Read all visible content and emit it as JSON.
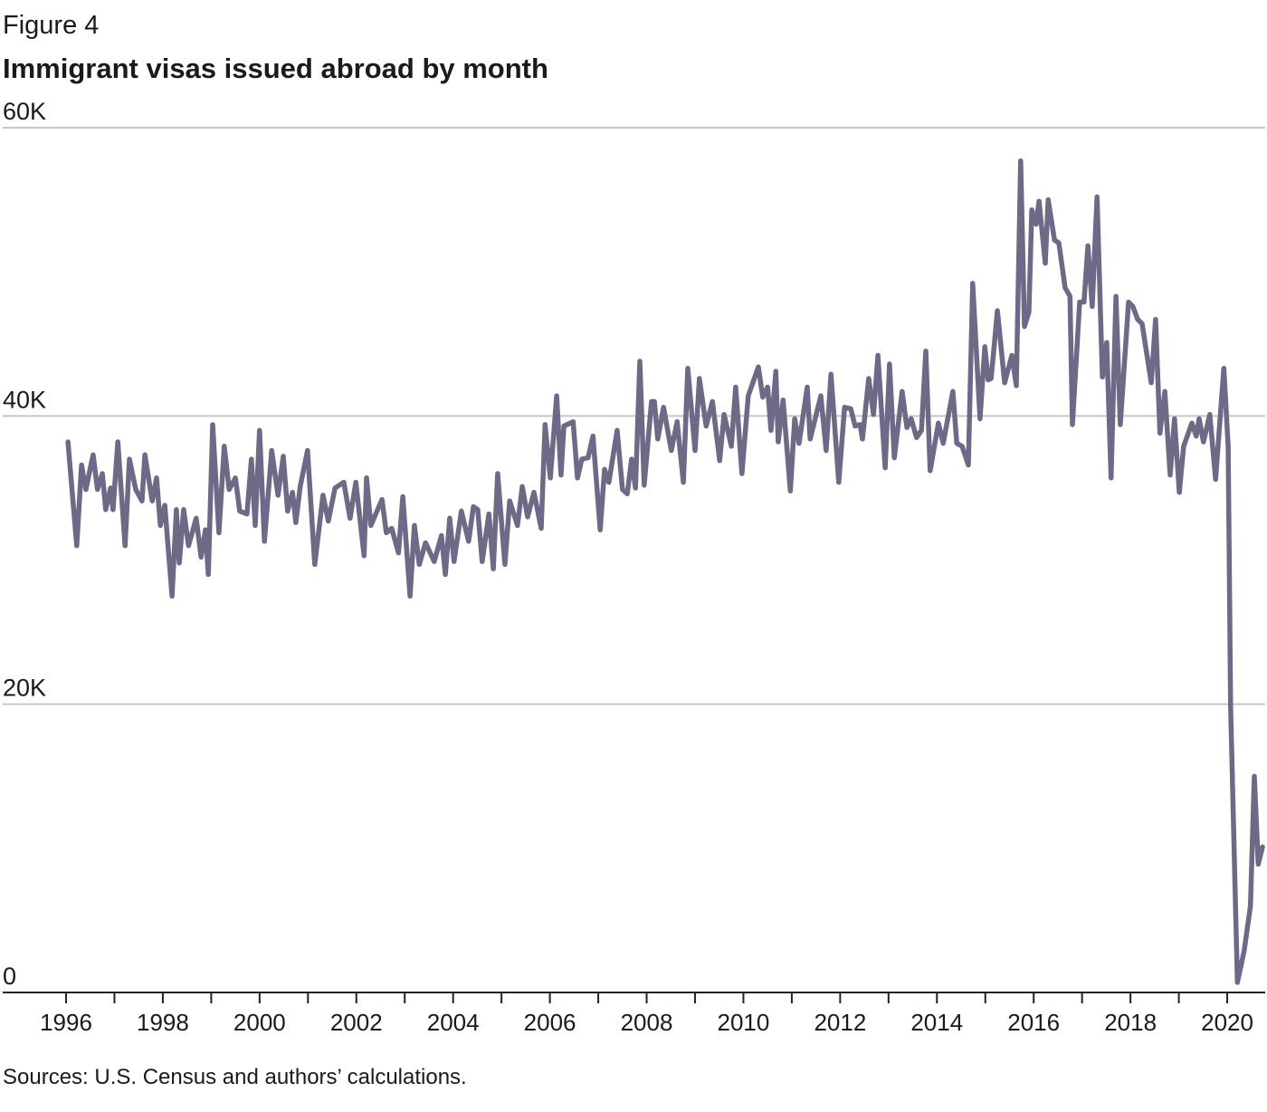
{
  "figure_label": "Figure 4",
  "chart_data": {
    "type": "line",
    "title": "Immigrant visas issued abroad by month",
    "xlabel": "",
    "ylabel": "",
    "xlim": [
      1996,
      2020.75
    ],
    "ylim": [
      0,
      60
    ],
    "y_unit": "thousands",
    "y_ticks": [
      {
        "value": 0,
        "label": "0"
      },
      {
        "value": 20,
        "label": "20K"
      },
      {
        "value": 40,
        "label": "40K"
      },
      {
        "value": 60,
        "label": "60K"
      }
    ],
    "x_ticks": [
      {
        "value": 1996,
        "label": "1996"
      },
      {
        "value": 1998,
        "label": "1998"
      },
      {
        "value": 2000,
        "label": "2000"
      },
      {
        "value": 2002,
        "label": "2002"
      },
      {
        "value": 2004,
        "label": "2004"
      },
      {
        "value": 2006,
        "label": "2006"
      },
      {
        "value": 2008,
        "label": "2008"
      },
      {
        "value": 2010,
        "label": "2010"
      },
      {
        "value": 2012,
        "label": "2012"
      },
      {
        "value": 2014,
        "label": "2014"
      },
      {
        "value": 2016,
        "label": "2016"
      },
      {
        "value": 2018,
        "label": "2018"
      },
      {
        "value": 2020,
        "label": "2020"
      }
    ],
    "grid": true,
    "line_color": "#6d6987",
    "series": [
      {
        "x": [
          1996.04,
          1996.22,
          1996.32,
          1996.41,
          1996.56,
          1996.65,
          1996.75,
          1996.82,
          1996.92,
          1996.97,
          1997.07,
          1997.22,
          1997.31,
          1997.44,
          1997.57,
          1997.63,
          1997.78,
          1997.87,
          1997.95,
          1998.04,
          1998.19,
          1998.28,
          1998.34,
          1998.43,
          1998.53,
          1998.69,
          1998.79,
          1998.88,
          1998.94,
          1999.03,
          1999.16,
          1999.27,
          1999.37,
          1999.5,
          1999.59,
          1999.74,
          1999.83,
          1999.91,
          2000.0,
          2000.1,
          2000.25,
          2000.38,
          2000.49,
          2000.58,
          2000.68,
          2000.75,
          2000.84,
          2000.99,
          2001.14,
          2001.31,
          2001.42,
          2001.56,
          2001.74,
          2001.87,
          2001.99,
          2002.16,
          2002.21,
          2002.3,
          2002.53,
          2002.62,
          2002.73,
          2002.87,
          2002.96,
          2003.11,
          2003.2,
          2003.3,
          2003.43,
          2003.61,
          2003.76,
          2003.84,
          2003.93,
          2004.02,
          2004.17,
          2004.32,
          2004.42,
          2004.51,
          2004.6,
          2004.74,
          2004.83,
          2004.92,
          2005.07,
          2005.17,
          2005.33,
          2005.43,
          2005.54,
          2005.67,
          2005.82,
          2005.9,
          2006.01,
          2006.14,
          2006.23,
          2006.29,
          2006.48,
          2006.57,
          2006.66,
          2006.79,
          2006.89,
          2007.04,
          2007.13,
          2007.22,
          2007.39,
          2007.5,
          2007.6,
          2007.69,
          2007.77,
          2007.86,
          2007.95,
          2008.1,
          2008.16,
          2008.23,
          2008.35,
          2008.51,
          2008.63,
          2008.76,
          2008.85,
          2009.0,
          2009.09,
          2009.23,
          2009.36,
          2009.51,
          2009.6,
          2009.75,
          2009.84,
          2009.97,
          2010.1,
          2010.31,
          2010.4,
          2010.5,
          2010.57,
          2010.67,
          2010.72,
          2010.82,
          2010.97,
          2011.06,
          2011.15,
          2011.32,
          2011.38,
          2011.6,
          2011.71,
          2011.81,
          2011.97,
          2012.09,
          2012.22,
          2012.31,
          2012.41,
          2012.46,
          2012.59,
          2012.69,
          2012.78,
          2012.93,
          2013.02,
          2013.12,
          2013.28,
          2013.38,
          2013.47,
          2013.58,
          2013.68,
          2013.77,
          2013.86,
          2014.03,
          2014.13,
          2014.33,
          2014.41,
          2014.52,
          2014.65,
          2014.74,
          2014.89,
          2014.99,
          2015.06,
          2015.12,
          2015.25,
          2015.4,
          2015.55,
          2015.64,
          2015.73,
          2015.81,
          2015.9,
          2015.96,
          2016.05,
          2016.11,
          2016.24,
          2016.3,
          2016.43,
          2016.52,
          2016.65,
          2016.75,
          2016.8,
          2016.95,
          2017.04,
          2017.12,
          2017.21,
          2017.31,
          2017.42,
          2017.51,
          2017.6,
          2017.7,
          2017.79,
          2017.96,
          2018.05,
          2018.15,
          2018.24,
          2018.43,
          2018.52,
          2018.61,
          2018.71,
          2018.82,
          2018.91,
          2019.01,
          2019.1,
          2019.27,
          2019.36,
          2019.42,
          2019.51,
          2019.64,
          2019.76,
          2019.93,
          2020.02,
          2020.07,
          2020.21,
          2020.35,
          2020.48,
          2020.56,
          2020.64,
          2020.73
        ],
        "y": [
          38.2,
          31.0,
          36.6,
          34.9,
          37.3,
          34.9,
          36.0,
          33.5,
          35.0,
          33.5,
          38.2,
          31.0,
          37.0,
          34.9,
          34.1,
          37.3,
          34.1,
          35.7,
          32.4,
          33.8,
          27.5,
          33.5,
          29.8,
          33.5,
          31.0,
          32.9,
          30.2,
          32.1,
          29.0,
          39.4,
          31.9,
          37.9,
          34.9,
          35.7,
          33.4,
          33.2,
          37.0,
          32.4,
          39.0,
          31.3,
          37.6,
          34.5,
          37.2,
          33.4,
          34.7,
          32.6,
          35.1,
          37.6,
          29.7,
          34.5,
          32.7,
          35.0,
          35.4,
          32.9,
          35.4,
          30.3,
          35.7,
          32.4,
          34.2,
          31.9,
          32.2,
          30.5,
          34.4,
          27.5,
          32.4,
          29.7,
          31.2,
          29.9,
          31.7,
          29.0,
          32.9,
          29.9,
          33.4,
          31.3,
          33.7,
          33.5,
          29.9,
          33.2,
          29.4,
          36.0,
          29.7,
          34.1,
          32.4,
          35.1,
          33.0,
          34.7,
          32.2,
          39.4,
          35.7,
          41.4,
          35.9,
          39.3,
          39.6,
          35.7,
          37.0,
          37.1,
          38.6,
          32.1,
          36.3,
          35.4,
          39.0,
          34.9,
          34.6,
          37.0,
          35.0,
          43.8,
          35.2,
          41.0,
          41.0,
          38.4,
          40.6,
          37.6,
          39.6,
          35.4,
          43.3,
          37.6,
          42.6,
          39.3,
          41.0,
          36.9,
          40.1,
          37.9,
          42.0,
          36.0,
          41.4,
          43.4,
          41.3,
          42.0,
          39.0,
          43.1,
          38.2,
          41.1,
          34.8,
          39.8,
          38.1,
          42.0,
          38.4,
          41.4,
          37.6,
          42.9,
          35.4,
          40.6,
          40.5,
          39.3,
          39.4,
          38.4,
          42.6,
          40.1,
          44.2,
          36.4,
          43.6,
          37.1,
          41.7,
          39.2,
          39.8,
          38.5,
          39.0,
          44.5,
          36.2,
          39.5,
          38.1,
          41.7,
          38.1,
          37.9,
          36.6,
          49.2,
          39.8,
          44.8,
          42.5,
          42.6,
          47.3,
          42.3,
          44.2,
          42.1,
          57.7,
          46.2,
          47.2,
          54.3,
          53.3,
          54.9,
          50.6,
          55.0,
          52.2,
          52.0,
          48.9,
          48.3,
          39.4,
          47.9,
          47.9,
          51.8,
          47.6,
          55.2,
          42.7,
          45.1,
          35.7,
          48.3,
          39.4,
          47.9,
          47.6,
          46.7,
          46.4,
          42.3,
          46.7,
          38.8,
          41.7,
          35.9,
          39.8,
          34.7,
          37.9,
          39.5,
          38.6,
          39.8,
          38.2,
          40.1,
          35.6,
          43.3,
          37.9,
          19.8,
          0.7,
          2.9,
          6.0,
          15.0,
          8.9,
          10.1
        ]
      }
    ]
  },
  "source": "Sources: U.S. Census and authors’ calculations."
}
